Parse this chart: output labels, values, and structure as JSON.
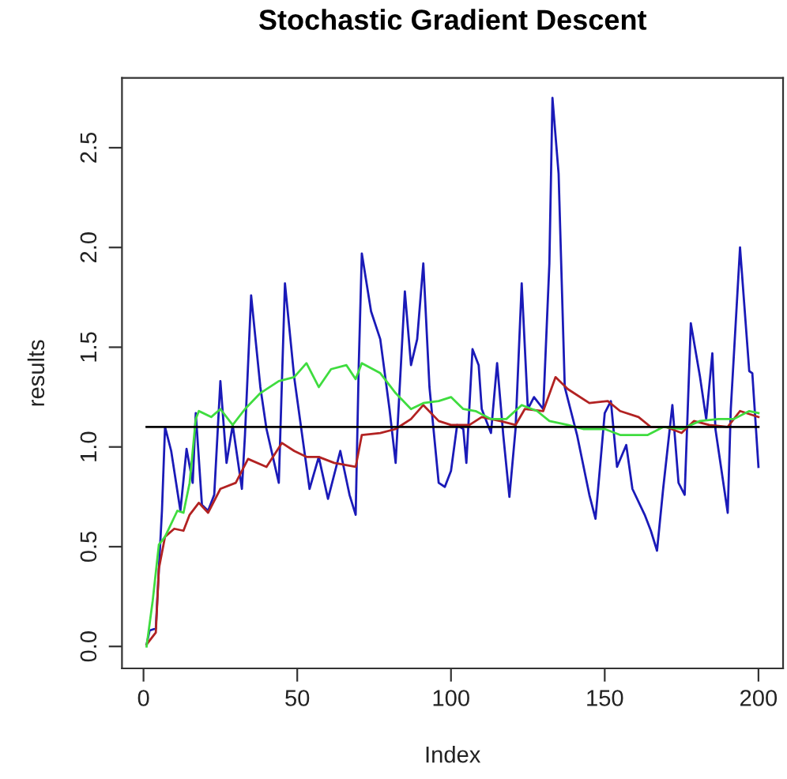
{
  "chart_data": {
    "type": "line",
    "title": "Stochastic Gradient Descent",
    "xlabel": "Index",
    "ylabel": "results",
    "xlim": [
      -7,
      208
    ],
    "xticks": [
      0,
      50,
      100,
      150,
      200
    ],
    "ylim": [
      -0.11,
      2.85
    ],
    "yticks": [
      {
        "value": 0,
        "label": "0.0"
      },
      {
        "value": 0.5,
        "label": "0.5"
      },
      {
        "value": 1,
        "label": "1.0"
      },
      {
        "value": 1.5,
        "label": "1.5"
      },
      {
        "value": 2,
        "label": "2.0"
      },
      {
        "value": 2.5,
        "label": "2.5"
      }
    ],
    "grid": false,
    "marker": "none",
    "line_style": "solid",
    "series": [
      {
        "color": "#1a1ab8",
        "x": [
          1,
          2,
          4,
          5,
          6,
          7,
          9,
          12,
          14,
          16,
          17,
          19,
          21,
          23,
          25,
          27,
          29,
          32,
          33,
          35,
          38,
          40,
          44,
          46,
          49,
          54,
          57,
          60,
          64,
          67,
          69,
          70,
          71,
          74,
          77,
          80,
          82,
          85,
          87,
          89,
          91,
          93,
          96,
          98,
          100,
          102,
          104,
          105,
          107,
          109,
          110,
          113,
          115,
          117,
          119,
          121,
          123,
          125,
          127,
          130,
          132,
          133,
          135,
          137,
          141,
          145,
          147,
          150,
          152,
          154,
          157,
          159,
          163,
          165,
          167,
          169,
          172,
          174,
          176,
          178,
          181,
          183,
          185,
          186,
          190,
          191,
          194,
          197,
          198,
          200
        ],
        "values": [
          0.01,
          0.08,
          0.09,
          0.39,
          0.68,
          1.1,
          0.98,
          0.68,
          0.99,
          0.82,
          1.17,
          0.71,
          0.68,
          0.76,
          1.33,
          0.92,
          1.11,
          0.79,
          1.06,
          1.76,
          1.3,
          1.09,
          0.82,
          1.82,
          1.35,
          0.79,
          0.95,
          0.74,
          0.98,
          0.76,
          0.66,
          1.41,
          1.97,
          1.68,
          1.54,
          1.19,
          0.92,
          1.78,
          1.41,
          1.54,
          1.92,
          1.3,
          0.82,
          0.8,
          0.88,
          1.11,
          1.09,
          0.92,
          1.49,
          1.41,
          1.19,
          1.07,
          1.42,
          1.06,
          0.75,
          1.09,
          1.82,
          1.19,
          1.25,
          1.19,
          1.92,
          2.75,
          2.37,
          1.3,
          1.06,
          0.76,
          0.64,
          1.17,
          1.23,
          0.9,
          1.01,
          0.79,
          0.66,
          0.58,
          0.48,
          0.79,
          1.21,
          0.82,
          0.76,
          1.62,
          1.35,
          1.14,
          1.47,
          1.09,
          0.67,
          1.19,
          2.0,
          1.38,
          1.37,
          0.9
        ]
      },
      {
        "color": "#b22222",
        "x": [
          1,
          4,
          5,
          7,
          10,
          13,
          15,
          18,
          21,
          25,
          30,
          34,
          40,
          45,
          49,
          53,
          57,
          62,
          69,
          71,
          77,
          82,
          87,
          91,
          96,
          100,
          106,
          110,
          116,
          121,
          124,
          130,
          134,
          138,
          145,
          151,
          155,
          161,
          165,
          170,
          175,
          179,
          184,
          190,
          194,
          200
        ],
        "values": [
          0.01,
          0.07,
          0.39,
          0.55,
          0.59,
          0.58,
          0.66,
          0.72,
          0.67,
          0.79,
          0.82,
          0.94,
          0.9,
          1.02,
          0.98,
          0.95,
          0.95,
          0.92,
          0.9,
          1.06,
          1.07,
          1.09,
          1.14,
          1.21,
          1.13,
          1.11,
          1.11,
          1.15,
          1.13,
          1.11,
          1.19,
          1.18,
          1.35,
          1.29,
          1.22,
          1.23,
          1.18,
          1.15,
          1.1,
          1.1,
          1.07,
          1.13,
          1.11,
          1.1,
          1.18,
          1.15
        ]
      },
      {
        "color": "#3fdc3f",
        "x": [
          1,
          3,
          5,
          7,
          11,
          13,
          15,
          17,
          18,
          22,
          25,
          29,
          33,
          38,
          44,
          49,
          53,
          57,
          61,
          66,
          69,
          71,
          77,
          82,
          87,
          91,
          96,
          100,
          104,
          108,
          113,
          118,
          123,
          128,
          132,
          138,
          143,
          150,
          155,
          164,
          169,
          175,
          181,
          187,
          192,
          197,
          200
        ],
        "values": [
          0.0,
          0.23,
          0.51,
          0.55,
          0.68,
          0.67,
          0.82,
          1.14,
          1.18,
          1.15,
          1.19,
          1.11,
          1.19,
          1.27,
          1.33,
          1.35,
          1.42,
          1.3,
          1.39,
          1.41,
          1.34,
          1.42,
          1.37,
          1.27,
          1.19,
          1.22,
          1.23,
          1.25,
          1.19,
          1.18,
          1.14,
          1.14,
          1.21,
          1.18,
          1.13,
          1.11,
          1.09,
          1.09,
          1.06,
          1.06,
          1.1,
          1.09,
          1.13,
          1.14,
          1.14,
          1.18,
          1.17
        ]
      },
      {
        "color": "#000000",
        "x": [
          1,
          200
        ],
        "values": [
          1.1,
          1.1
        ]
      }
    ]
  }
}
